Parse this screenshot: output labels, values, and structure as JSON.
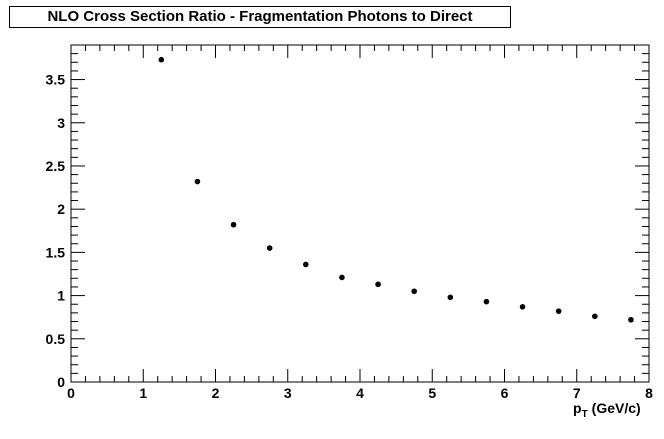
{
  "chart_data": {
    "type": "scatter",
    "title": "NLO Cross Section Ratio - Fragmentation Photons to Direct",
    "xlabel_main": "p",
    "xlabel_sub": "T",
    "xlabel_units": "(GeV/c)",
    "ylabel": "",
    "xlim": [
      0,
      8
    ],
    "ylim": [
      0,
      3.9
    ],
    "x_ticks": [
      "0",
      "1",
      "2",
      "3",
      "4",
      "5",
      "6",
      "7",
      "8"
    ],
    "y_ticks": [
      "0",
      "0.5",
      "1",
      "1.5",
      "2",
      "2.5",
      "3",
      "3.5"
    ],
    "grid": false,
    "legend": false,
    "marker_color": "#000000",
    "points": [
      {
        "x": 1.25,
        "y": 3.73
      },
      {
        "x": 1.75,
        "y": 2.32
      },
      {
        "x": 2.25,
        "y": 1.82
      },
      {
        "x": 2.75,
        "y": 1.55
      },
      {
        "x": 3.25,
        "y": 1.36
      },
      {
        "x": 3.75,
        "y": 1.21
      },
      {
        "x": 4.25,
        "y": 1.13
      },
      {
        "x": 4.75,
        "y": 1.05
      },
      {
        "x": 5.25,
        "y": 0.98
      },
      {
        "x": 5.75,
        "y": 0.93
      },
      {
        "x": 6.25,
        "y": 0.87
      },
      {
        "x": 6.75,
        "y": 0.82
      },
      {
        "x": 7.25,
        "y": 0.76
      },
      {
        "x": 7.75,
        "y": 0.72
      }
    ]
  }
}
